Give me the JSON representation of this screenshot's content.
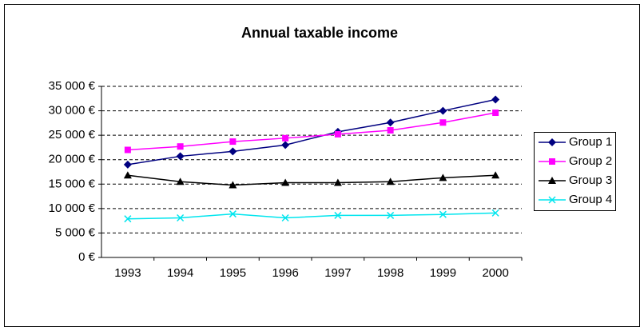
{
  "chart_data": {
    "type": "line",
    "title": "Annual taxable income",
    "categories": [
      "1993",
      "1994",
      "1995",
      "1996",
      "1997",
      "1998",
      "1999",
      "2000"
    ],
    "series": [
      {
        "name": "Group 1",
        "color": "#000080",
        "marker": "diamond",
        "values": [
          19000,
          20700,
          21700,
          23000,
          25700,
          27600,
          30000,
          32300
        ]
      },
      {
        "name": "Group 2",
        "color": "#ff00ff",
        "marker": "square",
        "values": [
          22000,
          22700,
          23700,
          24400,
          25200,
          26000,
          27600,
          29600
        ]
      },
      {
        "name": "Group 3",
        "color": "#000000",
        "marker": "triangle",
        "values": [
          16800,
          15500,
          14800,
          15300,
          15300,
          15500,
          16300,
          16800
        ]
      },
      {
        "name": "Group 4",
        "color": "#00e5ee",
        "marker": "x",
        "values": [
          7900,
          8100,
          8900,
          8100,
          8600,
          8600,
          8800,
          9100
        ]
      }
    ],
    "ylim": [
      0,
      35000
    ],
    "yticks": [
      {
        "value": 0,
        "label": "0 €"
      },
      {
        "value": 5000,
        "label": "5 000 €"
      },
      {
        "value": 10000,
        "label": "10 000 €"
      },
      {
        "value": 15000,
        "label": "15 000 €"
      },
      {
        "value": 20000,
        "label": "20 000 €"
      },
      {
        "value": 25000,
        "label": "25 000 €"
      },
      {
        "value": 30000,
        "label": "30 000 €"
      },
      {
        "value": 35000,
        "label": "35 000 €"
      }
    ],
    "grid": true,
    "legend": "right"
  }
}
